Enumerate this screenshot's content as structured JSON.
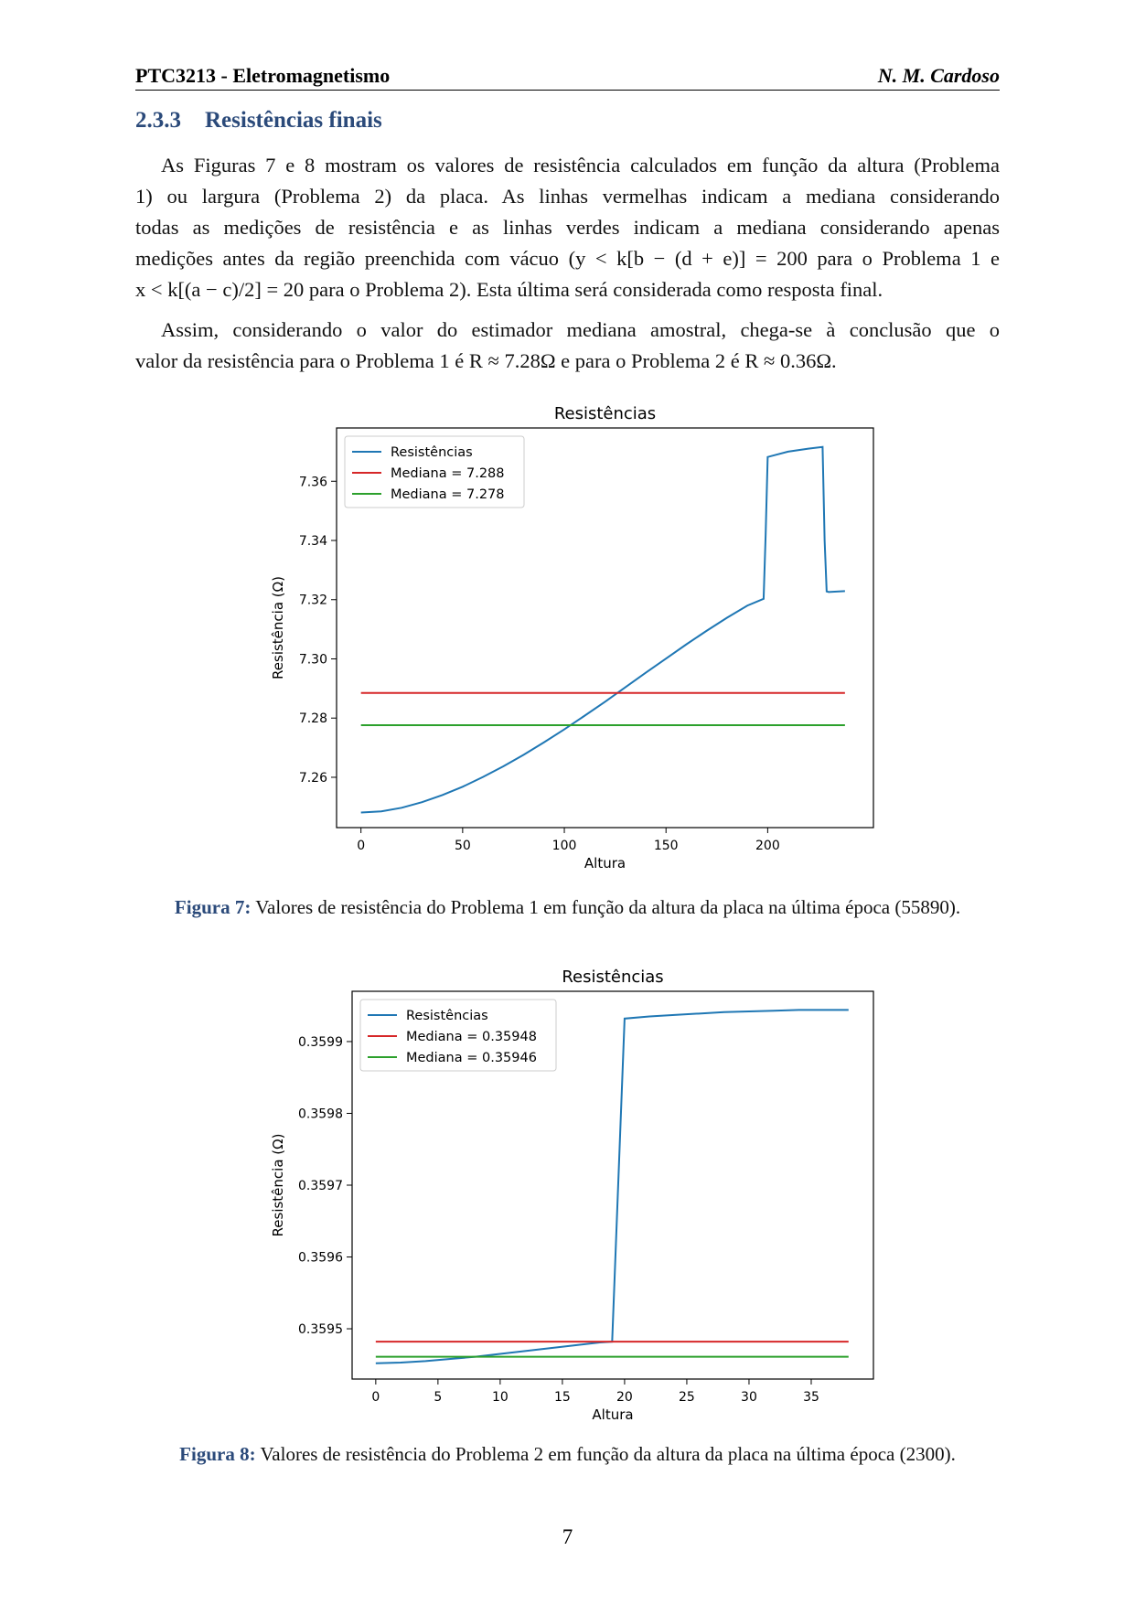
{
  "header": {
    "course": "PTC3213 - Eletromagnetismo",
    "author": "N. M. Cardoso"
  },
  "section": {
    "number": "2.3.3",
    "title": "Resistências finais"
  },
  "paragraph1": [
    "As Figuras 7 e 8 mostram os valores de resistência calculados em função da altura (Problema",
    "1) ou largura (Problema 2) da placa.  As linhas vermelhas indicam a mediana considerando",
    "todas as medições de resistência e as linhas verdes indicam a mediana considerando apenas",
    "medições antes da região preenchida com vácuo (y < k[b − (d + e)] = 200 para o Problema 1 e",
    "x < k[(a − c)/2] = 20 para o Problema 2). Esta última será considerada como resposta final."
  ],
  "paragraph2": [
    "Assim, considerando o valor do estimador mediana amostral, chega-se à conclusão que o",
    "valor da resistência para o Problema 1 é R ≈ 7.28Ω e para o Problema 2 é R ≈ 0.36Ω."
  ],
  "figure7": {
    "label": "Figura 7:",
    "caption": "Valores de resistência do Problema 1 em função da altura da placa na última época (55890)."
  },
  "figure8": {
    "label": "Figura 8:",
    "caption": "Valores de resistência do Problema 2 em função da altura da placa na última época (2300)."
  },
  "page_number": "7",
  "chart_data": [
    {
      "type": "line",
      "title": "Resistências",
      "xlabel": "Altura",
      "ylabel": "Resistência (Ω)",
      "xlim": [
        -12,
        252
      ],
      "ylim": [
        7.243,
        7.378
      ],
      "xticks": [
        0,
        50,
        100,
        150,
        200
      ],
      "yticks": [
        7.26,
        7.28,
        7.3,
        7.32,
        7.34,
        7.36
      ],
      "ytick_labels": [
        "7.26",
        "7.28",
        "7.30",
        "7.32",
        "7.34",
        "7.36"
      ],
      "legend_position": "top-left",
      "series": [
        {
          "name": "Resistências",
          "color": "#1f77b4",
          "x": [
            0,
            10,
            20,
            30,
            40,
            50,
            60,
            70,
            80,
            90,
            100,
            110,
            120,
            130,
            140,
            150,
            160,
            170,
            180,
            190,
            198,
            199,
            200,
            210,
            220,
            227,
            228,
            229,
            230,
            238
          ],
          "y": [
            7.2481,
            7.2485,
            7.2497,
            7.2516,
            7.254,
            7.2568,
            7.2601,
            7.2637,
            7.2676,
            7.2718,
            7.2762,
            7.2808,
            7.2855,
            7.2904,
            7.2953,
            7.3001,
            7.3049,
            7.3095,
            7.3139,
            7.318,
            7.3203,
            7.342,
            7.3682,
            7.37,
            7.371,
            7.3716,
            7.34,
            7.3228,
            7.3226,
            7.3229
          ]
        },
        {
          "name": "Mediana = 7.288",
          "color": "#d62728",
          "x": [
            0,
            238
          ],
          "y": [
            7.2885,
            7.2885
          ]
        },
        {
          "name": "Mediana = 7.278",
          "color": "#2ca02c",
          "x": [
            0,
            238
          ],
          "y": [
            7.2776,
            7.2776
          ]
        }
      ]
    },
    {
      "type": "line",
      "title": "Resistências",
      "xlabel": "Altura",
      "ylabel": "Resistência (Ω)",
      "xlim": [
        -1.9,
        40.0
      ],
      "ylim": [
        0.35943,
        0.35997
      ],
      "xticks": [
        0,
        5,
        10,
        15,
        20,
        25,
        30,
        35
      ],
      "yticks": [
        0.3595,
        0.3596,
        0.3597,
        0.3598,
        0.3599
      ],
      "ytick_labels": [
        "0.3595",
        "0.3596",
        "0.3597",
        "0.3598",
        "0.3599"
      ],
      "legend_position": "top-left",
      "series": [
        {
          "name": "Resistências",
          "color": "#1f77b4",
          "x": [
            0,
            2,
            4,
            6,
            8,
            10,
            12,
            14,
            16,
            18,
            19,
            20,
            22,
            24,
            26,
            28,
            30,
            32,
            34,
            36,
            38
          ],
          "y": [
            0.359452,
            0.359453,
            0.359455,
            0.359458,
            0.359461,
            0.359465,
            0.359469,
            0.359473,
            0.359477,
            0.359481,
            0.359482,
            0.359932,
            0.359935,
            0.359937,
            0.359939,
            0.359941,
            0.359942,
            0.359943,
            0.359944,
            0.359944,
            0.359944
          ]
        },
        {
          "name": "Mediana = 0.35948",
          "color": "#d62728",
          "x": [
            0,
            38
          ],
          "y": [
            0.359482,
            0.359482
          ]
        },
        {
          "name": "Mediana = 0.35946",
          "color": "#2ca02c",
          "x": [
            0,
            38
          ],
          "y": [
            0.359461,
            0.359461
          ]
        }
      ]
    }
  ]
}
